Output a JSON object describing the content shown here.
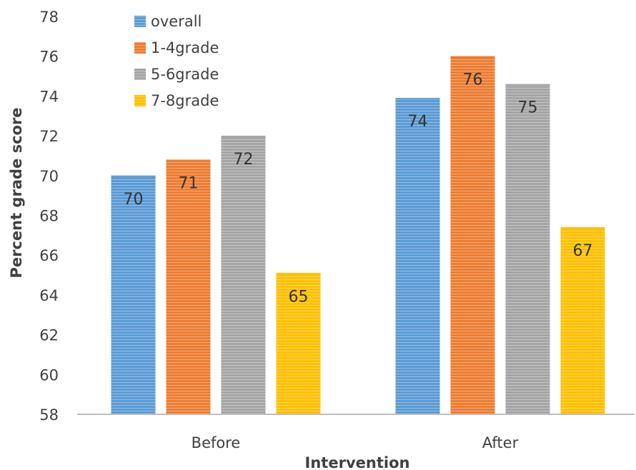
{
  "chart_data": {
    "type": "bar",
    "title": "",
    "xlabel": "Intervention",
    "ylabel": "Percent grade score",
    "ylim": [
      58,
      78
    ],
    "ytick_step": 2,
    "yticks": [
      "58",
      "60",
      "62",
      "64",
      "66",
      "68",
      "70",
      "72",
      "74",
      "76",
      "78"
    ],
    "categories": [
      "Before",
      "After"
    ],
    "series": [
      {
        "name": "overall",
        "color": "#5B9BD5",
        "values": [
          70.0,
          73.9
        ],
        "labels": [
          "70",
          "74"
        ]
      },
      {
        "name": "1-4grade",
        "color": "#ED7D31",
        "values": [
          70.8,
          76.0
        ],
        "labels": [
          "71",
          "76"
        ]
      },
      {
        "name": "5-6grade",
        "color": "#A5A5A5",
        "values": [
          72.0,
          74.6
        ],
        "labels": [
          "72",
          "75"
        ]
      },
      {
        "name": "7-8grade",
        "color": "#FFC000",
        "values": [
          65.1,
          67.4
        ],
        "labels": [
          "65",
          "67"
        ]
      }
    ],
    "grid": false,
    "legend_position": "top-left",
    "bar_style": "horizontal-striped"
  }
}
